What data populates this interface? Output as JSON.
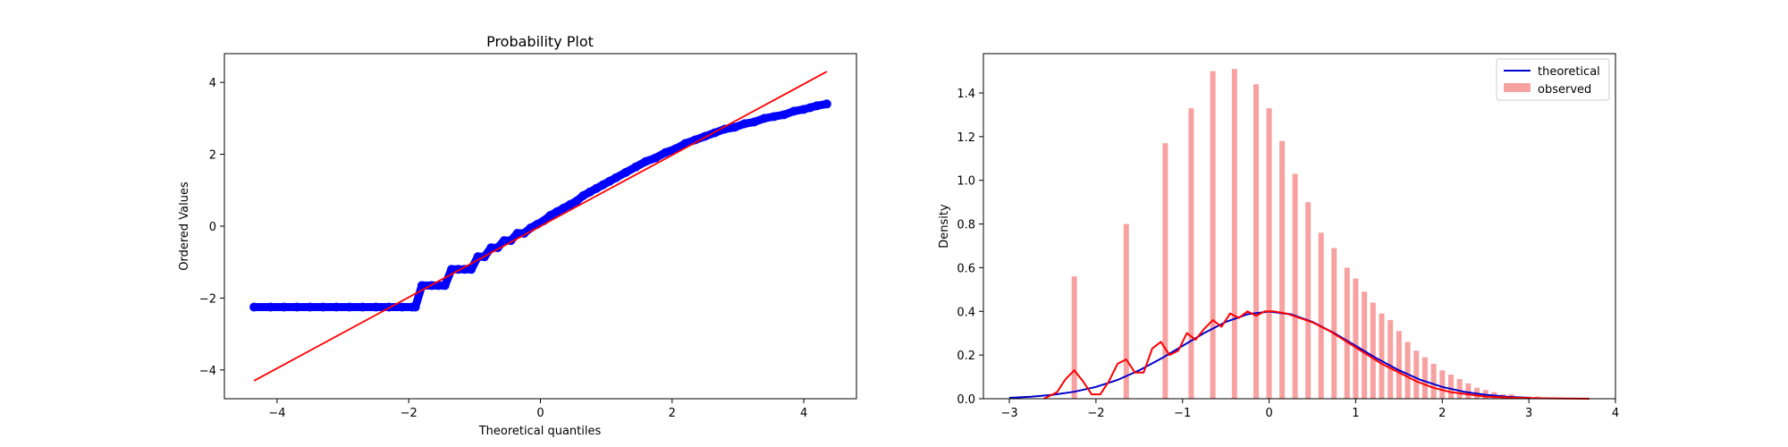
{
  "colors": {
    "points": "#0000ff",
    "fit_line": "#ff0000",
    "theoretical": "#0000cc",
    "observed_bars": "#f7a1a1",
    "kde": "#ff0000"
  },
  "chart_data": [
    {
      "type": "scatter",
      "title": "Probability Plot",
      "xlabel": "Theoretical quantiles",
      "ylabel": "Ordered Values",
      "xlim": [
        -4.8,
        4.8
      ],
      "ylim": [
        -4.8,
        4.8
      ],
      "xticks": [
        "−4",
        "−2",
        "0",
        "2",
        "4"
      ],
      "yticks": [
        "−4",
        "−2",
        "0",
        "2",
        "4"
      ],
      "grid": false,
      "fit_line": {
        "x": [
          -4.35,
          4.35
        ],
        "y": [
          -4.3,
          4.3
        ]
      },
      "points": {
        "x": [
          -4.35,
          -4.1,
          -3.9,
          -3.7,
          -3.5,
          -3.3,
          -3.1,
          -2.9,
          -2.7,
          -2.5,
          -2.3,
          -2.1,
          -1.95,
          -1.9,
          -1.8,
          -1.65,
          -1.55,
          -1.45,
          -1.35,
          -1.25,
          -1.15,
          -1.05,
          -0.95,
          -0.85,
          -0.75,
          -0.65,
          -0.55,
          -0.45,
          -0.35,
          -0.25,
          -0.15,
          -0.05,
          0.05,
          0.15,
          0.25,
          0.35,
          0.45,
          0.55,
          0.65,
          0.75,
          0.85,
          0.95,
          1.05,
          1.15,
          1.3,
          1.45,
          1.6,
          1.75,
          1.9,
          2.05,
          2.2,
          2.35,
          2.5,
          2.65,
          2.8,
          2.95,
          3.1,
          3.25,
          3.4,
          3.55,
          3.7,
          3.85,
          4.0,
          4.1,
          4.2,
          4.35
        ],
        "y": [
          -2.25,
          -2.25,
          -2.25,
          -2.25,
          -2.25,
          -2.25,
          -2.25,
          -2.25,
          -2.25,
          -2.25,
          -2.25,
          -2.25,
          -2.25,
          -2.25,
          -1.65,
          -1.65,
          -1.65,
          -1.65,
          -1.2,
          -1.2,
          -1.2,
          -1.2,
          -0.85,
          -0.85,
          -0.6,
          -0.6,
          -0.4,
          -0.4,
          -0.2,
          -0.2,
          -0.05,
          0.05,
          0.15,
          0.3,
          0.4,
          0.5,
          0.6,
          0.7,
          0.85,
          0.95,
          1.05,
          1.15,
          1.25,
          1.35,
          1.5,
          1.65,
          1.8,
          1.9,
          2.05,
          2.15,
          2.3,
          2.4,
          2.5,
          2.6,
          2.7,
          2.75,
          2.85,
          2.9,
          3.0,
          3.05,
          3.1,
          3.2,
          3.25,
          3.3,
          3.35,
          3.4
        ]
      }
    },
    {
      "type": "bar",
      "title": "",
      "xlabel": "",
      "ylabel": "Density",
      "xlim": [
        -3.3,
        4.0
      ],
      "ylim": [
        0,
        1.58
      ],
      "xticks": [
        "−3",
        "−2",
        "−1",
        "0",
        "1",
        "2",
        "3",
        "4"
      ],
      "yticks": [
        "0.0",
        "0.2",
        "0.4",
        "0.6",
        "0.8",
        "1.0",
        "1.2",
        "1.4"
      ],
      "grid": false,
      "legend": {
        "placement": "top-right",
        "entries": [
          "theoretical",
          "observed"
        ]
      },
      "bars": {
        "x": [
          -2.25,
          -1.65,
          -1.2,
          -0.9,
          -0.65,
          -0.4,
          -0.15,
          0.0,
          0.15,
          0.3,
          0.45,
          0.6,
          0.75,
          0.9,
          1.0,
          1.1,
          1.2,
          1.3,
          1.4,
          1.5,
          1.6,
          1.7,
          1.8,
          1.9,
          2.0,
          2.1,
          2.2,
          2.3,
          2.4,
          2.5,
          2.6,
          2.7,
          2.8,
          2.9,
          3.0,
          3.1,
          3.2,
          3.3,
          3.4,
          3.5,
          3.6
        ],
        "values": [
          0.56,
          0.8,
          1.17,
          1.33,
          1.5,
          1.51,
          1.44,
          1.33,
          1.18,
          1.03,
          0.9,
          0.76,
          0.69,
          0.6,
          0.55,
          0.49,
          0.44,
          0.39,
          0.36,
          0.31,
          0.26,
          0.22,
          0.19,
          0.16,
          0.13,
          0.11,
          0.09,
          0.07,
          0.05,
          0.04,
          0.03,
          0.02,
          0.02,
          0.01,
          0.01,
          0.01,
          0.005,
          0.005,
          0.003,
          0.002,
          0.001
        ]
      },
      "theoretical": {
        "name": "theoretical",
        "x": [
          -3.0,
          -2.75,
          -2.5,
          -2.25,
          -2.0,
          -1.75,
          -1.5,
          -1.25,
          -1.0,
          -0.75,
          -0.5,
          -0.25,
          0.0,
          0.25,
          0.5,
          0.75,
          1.0,
          1.25,
          1.5,
          1.75,
          2.0,
          2.25,
          2.5,
          2.75,
          3.0
        ],
        "y": [
          0.004,
          0.009,
          0.018,
          0.032,
          0.054,
          0.086,
          0.13,
          0.183,
          0.242,
          0.301,
          0.352,
          0.387,
          0.399,
          0.387,
          0.352,
          0.301,
          0.242,
          0.183,
          0.13,
          0.086,
          0.054,
          0.032,
          0.018,
          0.009,
          0.004
        ]
      },
      "observed_kde": {
        "name": "observed",
        "x": [
          -2.6,
          -2.45,
          -2.35,
          -2.25,
          -2.15,
          -2.05,
          -1.95,
          -1.85,
          -1.75,
          -1.65,
          -1.55,
          -1.45,
          -1.35,
          -1.25,
          -1.15,
          -1.05,
          -0.95,
          -0.85,
          -0.75,
          -0.65,
          -0.55,
          -0.45,
          -0.35,
          -0.25,
          -0.15,
          -0.05,
          0.05,
          0.2,
          0.35,
          0.5,
          0.7,
          0.9,
          1.1,
          1.3,
          1.5,
          1.7,
          1.9,
          2.1,
          2.3,
          2.5,
          2.8,
          3.1,
          3.4,
          3.7
        ],
        "y": [
          0.0,
          0.03,
          0.09,
          0.13,
          0.08,
          0.02,
          0.02,
          0.08,
          0.16,
          0.18,
          0.12,
          0.12,
          0.23,
          0.26,
          0.2,
          0.22,
          0.3,
          0.27,
          0.32,
          0.36,
          0.33,
          0.39,
          0.37,
          0.4,
          0.38,
          0.4,
          0.4,
          0.39,
          0.37,
          0.35,
          0.31,
          0.26,
          0.21,
          0.16,
          0.12,
          0.08,
          0.05,
          0.03,
          0.02,
          0.01,
          0.005,
          0.002,
          0.001,
          0.0
        ]
      }
    }
  ]
}
